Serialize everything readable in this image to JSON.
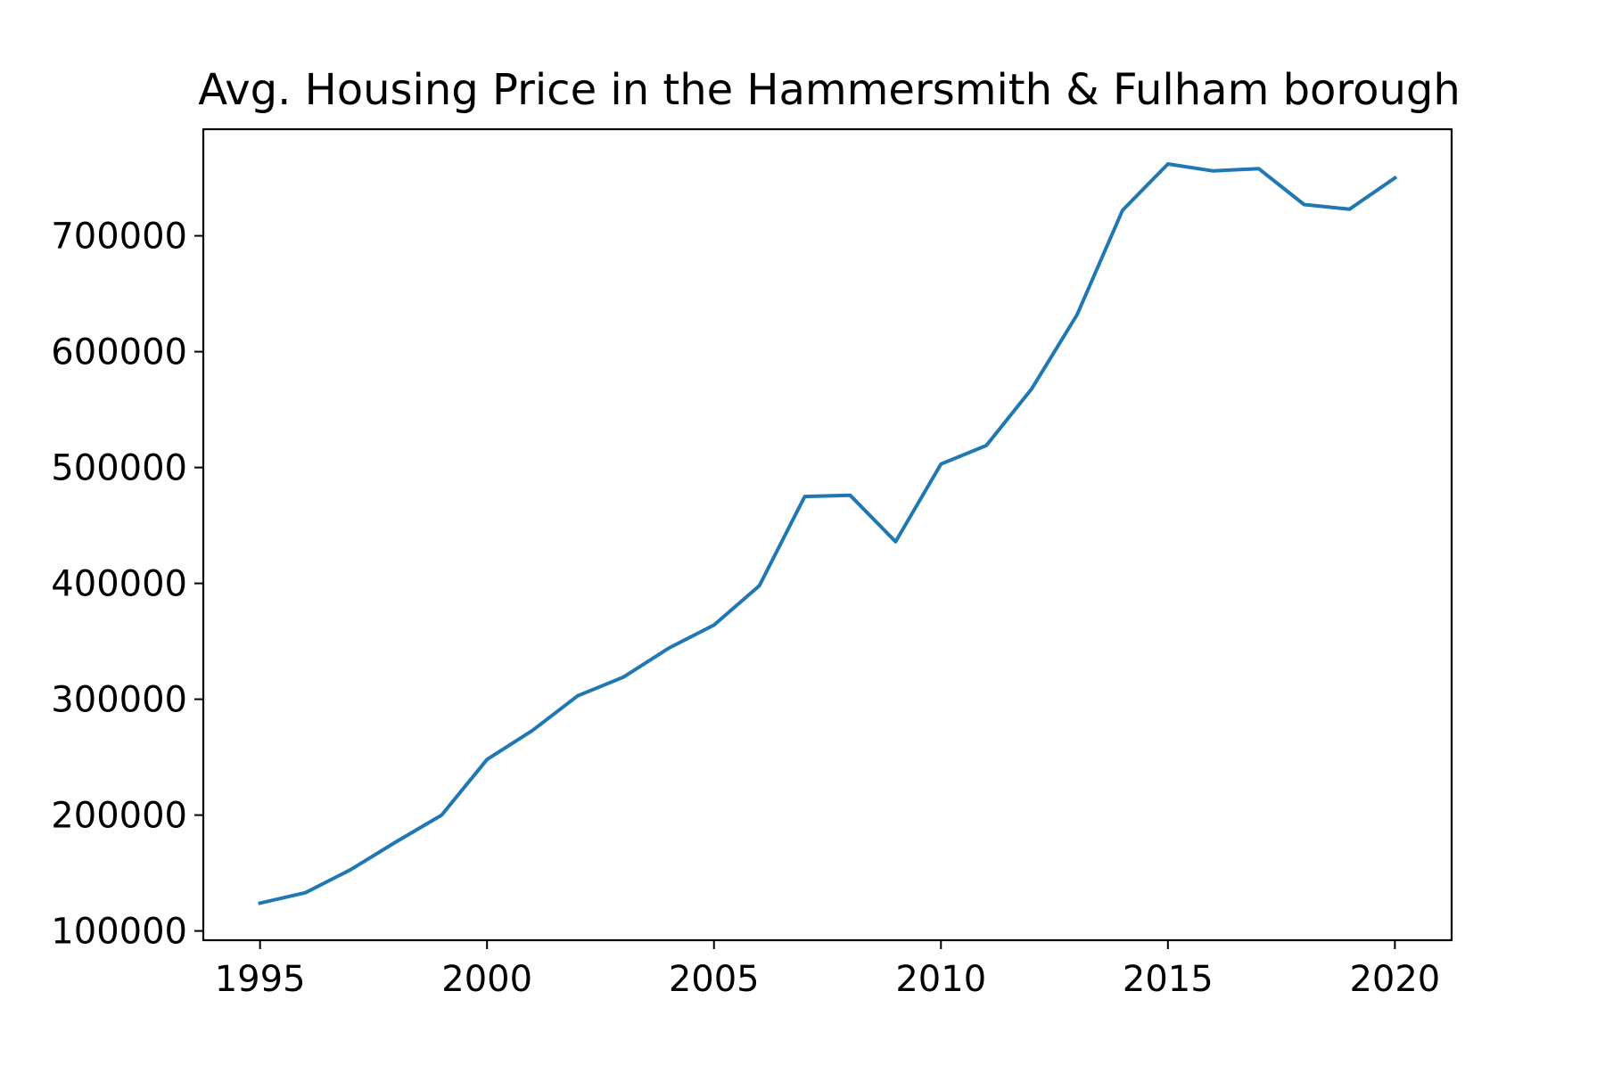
{
  "chart_data": {
    "type": "line",
    "title": "Avg. Housing Price in the Hammersmith & Fulham borough",
    "xlabel": "",
    "ylabel": "",
    "x": [
      1995,
      1996,
      1997,
      1998,
      1999,
      2000,
      2001,
      2002,
      2003,
      2004,
      2005,
      2006,
      2007,
      2008,
      2009,
      2010,
      2011,
      2012,
      2013,
      2014,
      2015,
      2016,
      2017,
      2018,
      2019,
      2020
    ],
    "series": [
      {
        "color": "#1f77b4",
        "values": [
          124000,
          133000,
          153000,
          177000,
          200000,
          248000,
          273000,
          303000,
          319000,
          344000,
          364000,
          398000,
          475000,
          476000,
          436000,
          503000,
          519000,
          568000,
          632000,
          722000,
          762000,
          756000,
          758000,
          727000,
          723000,
          750000
        ]
      }
    ],
    "xlim": [
      1993.75,
      2021.25
    ],
    "ylim": [
      92000,
      792000
    ],
    "xticks": [
      1995,
      2000,
      2005,
      2010,
      2015,
      2020
    ],
    "xtick_labels": [
      "1995",
      "2000",
      "2005",
      "2010",
      "2015",
      "2020"
    ],
    "yticks": [
      100000,
      200000,
      300000,
      400000,
      500000,
      600000,
      700000
    ],
    "ytick_labels": [
      "100000",
      "200000",
      "300000",
      "400000",
      "500000",
      "600000",
      "700000"
    ],
    "grid": false,
    "legend": "none"
  }
}
